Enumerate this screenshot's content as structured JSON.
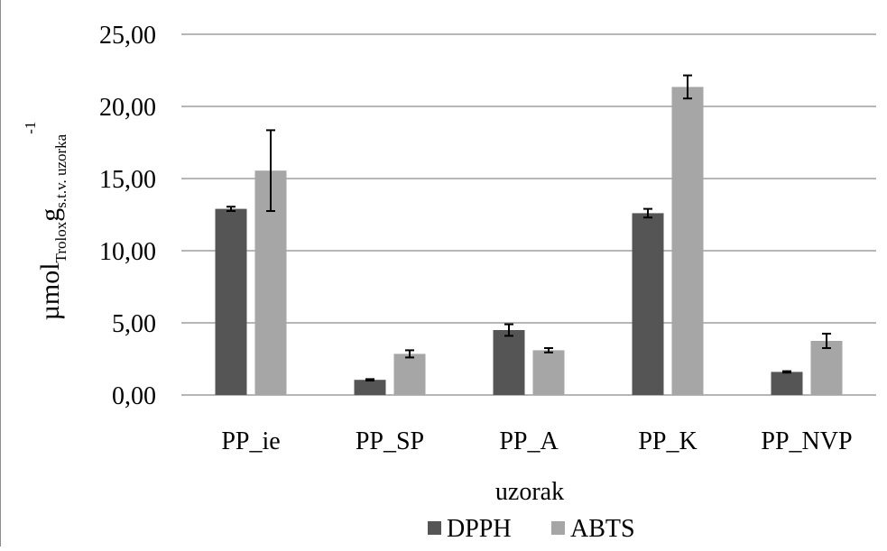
{
  "chart_data": {
    "type": "bar",
    "categories": [
      "PP_ie",
      "PP_SP",
      "PP_A",
      "PP_K",
      "PP_NVP"
    ],
    "series": [
      {
        "name": "DPPH",
        "values": [
          12.9,
          1.05,
          4.5,
          12.6,
          1.6
        ],
        "errors": [
          0.15,
          0.05,
          0.4,
          0.3,
          0.05
        ],
        "color": "#555555"
      },
      {
        "name": "ABTS",
        "values": [
          15.55,
          2.85,
          3.1,
          21.35,
          3.75
        ],
        "errors": [
          2.8,
          0.25,
          0.15,
          0.8,
          0.5
        ],
        "color": "#a6a6a6"
      }
    ],
    "ylim": [
      0,
      25
    ],
    "yticks": [
      "0,00",
      "5,00",
      "10,00",
      "15,00",
      "20,00",
      "25,00"
    ],
    "ytick_values": [
      0,
      5,
      10,
      15,
      20,
      25
    ],
    "ylabel": {
      "main": "µmol",
      "sub1": "Trolox",
      "mid": "g",
      "sub2": "s.t.v. uzorka",
      "sup": "-1"
    },
    "xlabel": "uzorak",
    "grid": true,
    "legend_position": "bottom"
  }
}
